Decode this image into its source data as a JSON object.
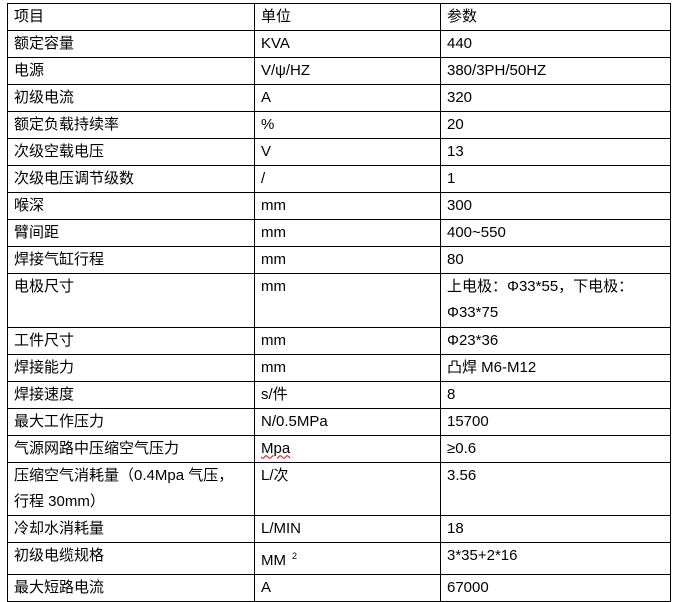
{
  "table": {
    "headers": [
      "项目",
      "单位",
      "参数"
    ],
    "rows": [
      [
        "额定容量",
        "KVA",
        "440"
      ],
      [
        "电源",
        "V/ψ/HZ",
        "380/3PH/50HZ"
      ],
      [
        "初级电流",
        "A",
        "320"
      ],
      [
        "额定负载持续率",
        "%",
        "20"
      ],
      [
        "次级空载电压",
        "V",
        "13"
      ],
      [
        "次级电压调节级数",
        "/",
        "1"
      ],
      [
        "喉深",
        "mm",
        "300"
      ],
      [
        "臂间距",
        "mm",
        "400~550"
      ],
      [
        "焊接气缸行程",
        "mm",
        "80"
      ],
      [
        "电极尺寸",
        "mm",
        "上电极：Φ33*55，下电极：Φ33*75"
      ],
      [
        "工件尺寸",
        "mm",
        "Φ23*36"
      ],
      [
        "焊接能力",
        "mm",
        "凸焊 M6-M12"
      ],
      [
        "焊接速度",
        "s/件",
        "8"
      ],
      [
        "最大工作压力",
        "N/0.5MPa",
        "15700"
      ],
      [
        "气源网路中压缩空气压力",
        "Mpa",
        "≥0.6"
      ],
      [
        "压缩空气消耗量（0.4Mpa 气压，行程 30mm）",
        "L/次",
        "3.56"
      ],
      [
        "冷却水消耗量",
        "L/MIN",
        "18"
      ],
      [
        "初级电缆规格",
        "MM",
        "3*35+2*16"
      ],
      [
        "最大短路电流",
        "A",
        "67000"
      ]
    ],
    "unit_superscript": "2"
  }
}
